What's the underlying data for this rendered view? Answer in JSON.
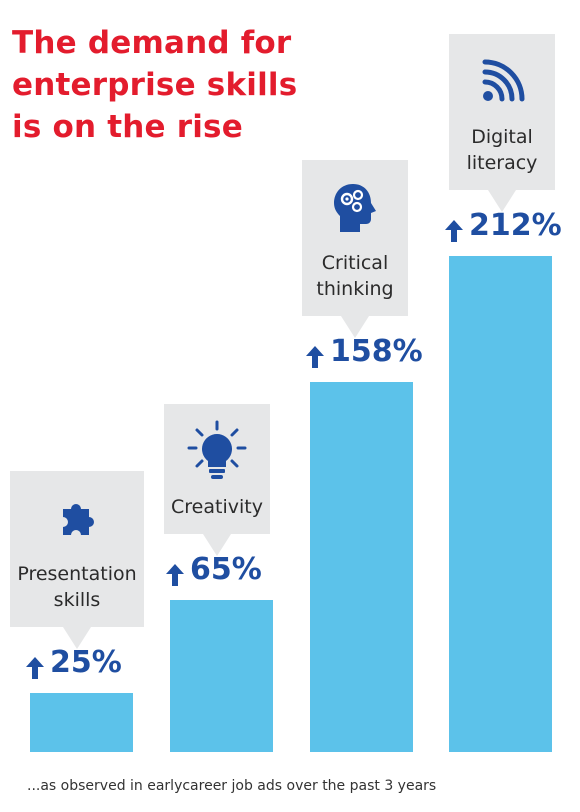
{
  "title_lines": [
    "The demand for",
    "enterprise skills",
    "is on the rise"
  ],
  "footnote": "...as observed in earlycareer job ads over the past 3 years",
  "watermark": "",
  "colors": {
    "title": "#e31c2d",
    "bar": "#5cc2ea",
    "value_text": "#1f4ea1",
    "icon": "#1f4ea1",
    "card_background": "#e6e7e8"
  },
  "chart_data": {
    "type": "bar",
    "title": "The demand for enterprise skills is on the rise",
    "categories": [
      {
        "label_lines": [
          "Presentation",
          "skills"
        ],
        "icon": "puzzle-icon"
      },
      {
        "label_lines": [
          "Creativity"
        ],
        "icon": "lightbulb-icon"
      },
      {
        "label_lines": [
          "Critical",
          "thinking"
        ],
        "icon": "head-gears-icon"
      },
      {
        "label_lines": [
          "Digital",
          "literacy"
        ],
        "icon": "wifi-signal-icon"
      }
    ],
    "values": [
      25,
      65,
      158,
      212
    ],
    "value_labels": [
      "25%",
      "65%",
      "158%",
      "212%"
    ],
    "unit": "%",
    "direction": "increase",
    "grid": false,
    "legend": "none"
  }
}
